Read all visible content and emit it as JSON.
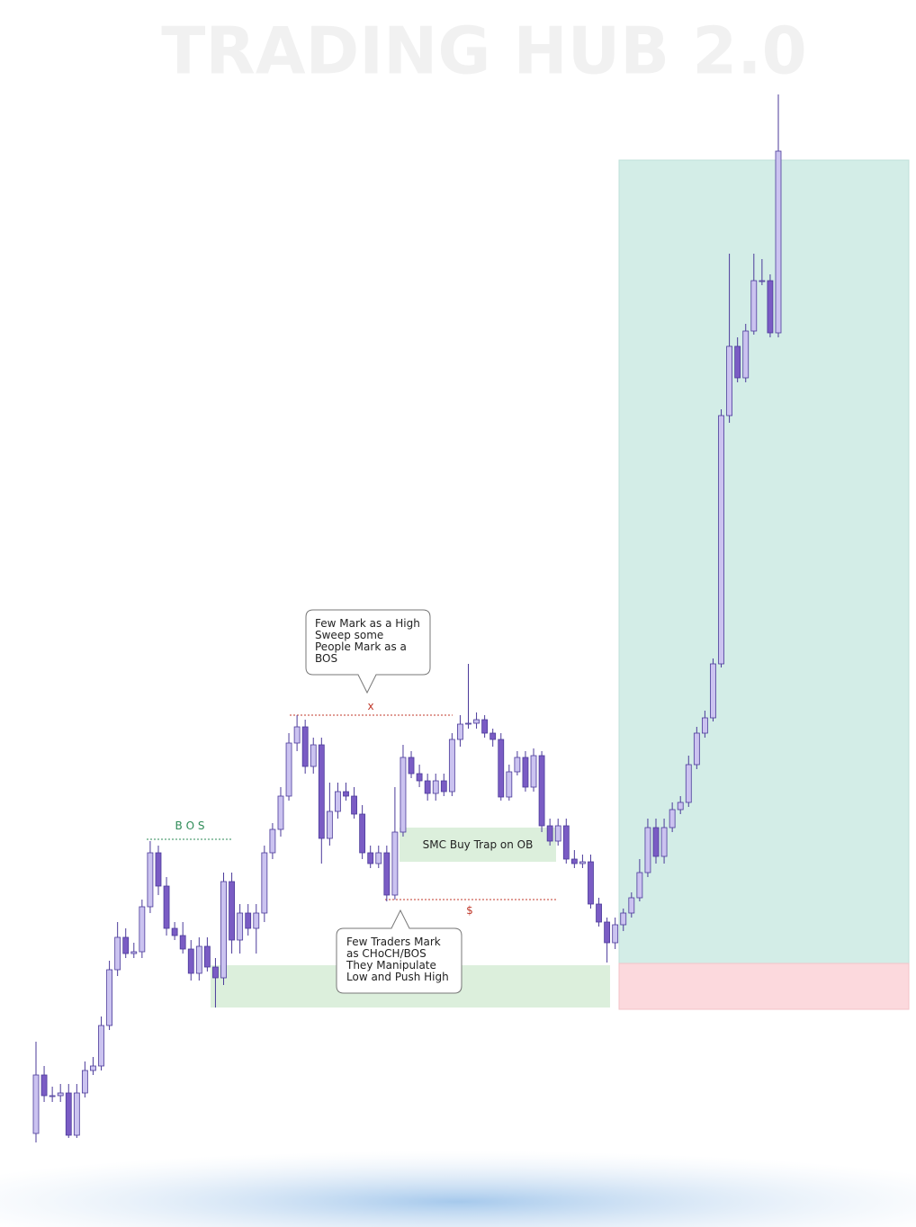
{
  "chart_data": {
    "type": "candlestick",
    "title": "TRADING HUB 2.0",
    "ylim": [
      0,
      120
    ],
    "bull_color": "#cbc3f0",
    "bear_color": "#7a5cc4",
    "edge_color": "#4b3a9a",
    "open": [
      4,
      10.5,
      8.2,
      8.2,
      8.5,
      3.8,
      8.5,
      11,
      11.5,
      16,
      22.2,
      25.8,
      24,
      24.2,
      29.2,
      35.2,
      31.5,
      26.8,
      26,
      24.5,
      21.8,
      24.8,
      22.5,
      21.3,
      32,
      25.5,
      28.5,
      26.8,
      28.5,
      35.2,
      37.8,
      41.5,
      47.4,
      49.2,
      44.8,
      47.2,
      36.8,
      39.8,
      42,
      41.5,
      39.5,
      35.2,
      34,
      35.2,
      30.5,
      37.5,
      45.8,
      44,
      43.2,
      41.8,
      43.2,
      42,
      47.8,
      49.5,
      49.6,
      50,
      48.5,
      47.8,
      41.4,
      44.2,
      45.8,
      42.5,
      46,
      38.2,
      36.5,
      38.2,
      34.5,
      34,
      34.2,
      29.5,
      27.5,
      25.2,
      27.2,
      28.5,
      30.2,
      33,
      38,
      34.8,
      38,
      40,
      40.8,
      45,
      48.5,
      50.2,
      56.2,
      83.8,
      91.5,
      88,
      93.2,
      98.8,
      98.8,
      93
    ],
    "high": [
      14.2,
      11.5,
      9.2,
      9.5,
      9.5,
      9.5,
      12,
      12.5,
      17,
      23.2,
      27.5,
      26.8,
      25.2,
      30,
      36.5,
      36,
      32.5,
      27.5,
      27.5,
      25.5,
      25.8,
      25.8,
      23.5,
      33,
      33,
      29.5,
      29.5,
      29.5,
      36,
      38.5,
      42.5,
      48.5,
      50.5,
      50,
      48,
      48,
      43,
      43,
      43,
      42.5,
      40.5,
      36,
      36,
      36,
      42.5,
      47.2,
      46.5,
      45,
      44,
      44,
      44,
      48.5,
      50.5,
      56.2,
      50.8,
      50.5,
      49,
      48.5,
      45,
      46.5,
      46.5,
      46.8,
      46.5,
      39,
      39,
      39,
      35.5,
      35,
      35,
      30.2,
      28,
      28,
      29,
      30.8,
      34.5,
      39,
      39,
      39,
      40.8,
      41.5,
      46,
      49.2,
      51,
      56.8,
      84.5,
      101.8,
      92.5,
      94,
      101.8,
      101.2,
      99.5,
      119.5
    ],
    "low": [
      3,
      7.5,
      7.5,
      7.5,
      3.5,
      3.5,
      8,
      10.5,
      11,
      15.5,
      21.5,
      23.5,
      23.5,
      23.5,
      28.5,
      30.5,
      26,
      25.5,
      24,
      21,
      21,
      22,
      18,
      20.5,
      24,
      24,
      26,
      24,
      27.5,
      34.5,
      37,
      41,
      46.5,
      44,
      44,
      34,
      36,
      39,
      41,
      39,
      34.5,
      33.5,
      33.5,
      29.8,
      30,
      37,
      43.5,
      42.5,
      41,
      41,
      41.5,
      41.5,
      47,
      49,
      49,
      48,
      47,
      41,
      41,
      43.8,
      42,
      42,
      37.5,
      36,
      36,
      34,
      33.5,
      33.5,
      29,
      27,
      23,
      24.5,
      26.5,
      28,
      29.8,
      32.5,
      34,
      34,
      37.5,
      39.5,
      40.3,
      44.5,
      48,
      49.8,
      55.8,
      83,
      87.5,
      87.5,
      92.8,
      98.3,
      92.5,
      92.5
    ],
    "close": [
      10.5,
      8.2,
      8.2,
      8.5,
      3.8,
      8.5,
      11,
      11.5,
      16,
      22.2,
      25.8,
      24,
      24.2,
      29.2,
      35.2,
      31.5,
      26.8,
      26,
      24.5,
      21.8,
      24.8,
      22.5,
      21.3,
      32,
      25.5,
      28.5,
      26.8,
      28.5,
      35.2,
      37.8,
      41.5,
      47.4,
      49.2,
      44.8,
      47.2,
      36.8,
      39.8,
      42,
      41.5,
      39.5,
      35.2,
      34,
      35.2,
      30.5,
      37.5,
      45.8,
      44,
      43.2,
      41.8,
      43.2,
      42,
      47.8,
      49.5,
      49.6,
      50,
      48.5,
      47.8,
      41.4,
      44.2,
      45.8,
      42.5,
      46,
      38.2,
      36.5,
      38.2,
      34.5,
      34,
      34.2,
      29.5,
      27.5,
      25.2,
      27.2,
      28.5,
      30.2,
      33,
      38,
      34.8,
      38,
      40,
      40.8,
      45,
      48.5,
      50.2,
      56.2,
      83.8,
      91.5,
      88,
      93.2,
      98.8,
      98.8,
      93,
      113.2
    ],
    "annotations": {
      "bos": "B O S",
      "high_marker": "x",
      "low_marker": "$",
      "ob_label": "SMC Buy Trap on OB",
      "high_callout": [
        "Few Mark as a High",
        "Sweep some",
        "People Mark as a",
        "BOS"
      ],
      "low_callout": [
        "Few Traders Mark",
        "as CHoCH/BOS",
        "They Manipulate",
        "Low and Push High"
      ]
    }
  }
}
